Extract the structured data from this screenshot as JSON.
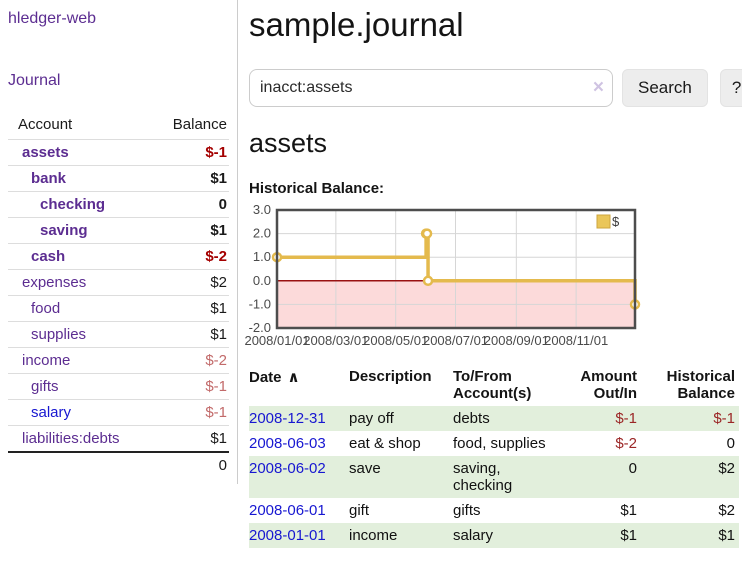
{
  "app": {
    "brand": "hledger-web"
  },
  "nav": {
    "journal": "Journal"
  },
  "sidebar": {
    "headers": {
      "account": "Account",
      "balance": "Balance"
    },
    "accounts": [
      {
        "name": "assets",
        "balance": "$-1",
        "depth": 1,
        "bold": true
      },
      {
        "name": "bank",
        "balance": "$1",
        "depth": 2,
        "bold": true
      },
      {
        "name": "checking",
        "balance": "0",
        "depth": 3,
        "bold": true
      },
      {
        "name": "saving",
        "balance": "$1",
        "depth": 3,
        "bold": true
      },
      {
        "name": "cash",
        "balance": "$-2",
        "depth": 2,
        "bold": true
      },
      {
        "name": "expenses",
        "balance": "$2",
        "depth": 1,
        "bold": false
      },
      {
        "name": "food",
        "balance": "$1",
        "depth": 2,
        "bold": false
      },
      {
        "name": "supplies",
        "balance": "$1",
        "depth": 2,
        "bold": false
      },
      {
        "name": "income",
        "balance": "$-2",
        "depth": 1,
        "bold": false
      },
      {
        "name": "gifts",
        "balance": "$-1",
        "depth": 2,
        "bold": false
      },
      {
        "name": "salary",
        "balance": "$-1",
        "depth": 2,
        "bold": false
      },
      {
        "name": "liabilities:debts",
        "balance": "$1",
        "depth": 1,
        "bold": false
      }
    ],
    "total": "0"
  },
  "main": {
    "title": "sample.journal",
    "search": {
      "value": "inacct:assets",
      "clear": "×",
      "search_button": "Search",
      "help_button": "?"
    },
    "account_heading": "assets",
    "chart_title": "Historical Balance:"
  },
  "register": {
    "headers": {
      "date": "Date",
      "sort_indicator": "∧",
      "description": "Description",
      "accounts": "To/From Account(s)",
      "amount": "Amount Out/In",
      "balance": "Historical Balance"
    },
    "rows": [
      {
        "date": "2008-12-31",
        "description": "pay off",
        "accounts": "debts",
        "amount": "$-1",
        "balance": "$-1"
      },
      {
        "date": "2008-06-03",
        "description": "eat & shop",
        "accounts": "food, supplies",
        "amount": "$-2",
        "balance": "0"
      },
      {
        "date": "2008-06-02",
        "description": "save",
        "accounts": "saving, checking",
        "amount": "0",
        "balance": "$2"
      },
      {
        "date": "2008-06-01",
        "description": "gift",
        "accounts": "gifts",
        "amount": "$1",
        "balance": "$2"
      },
      {
        "date": "2008-01-01",
        "description": "income",
        "accounts": "salary",
        "amount": "$1",
        "balance": "$1"
      }
    ]
  },
  "chart_data": {
    "type": "line",
    "step": true,
    "title": "Historical Balance:",
    "xlim": [
      "2008-01-01",
      "2008-12-31"
    ],
    "ylim": [
      -2,
      3
    ],
    "y_ticks": [
      3,
      2,
      1,
      0,
      -1,
      -2
    ],
    "x_ticks": [
      "2008/01/01",
      "2008/03/01",
      "2008/05/01",
      "2008/07/01",
      "2008/09/01",
      "2008/11/01"
    ],
    "series": [
      {
        "name": "$",
        "points": [
          [
            "2008-01-01",
            1
          ],
          [
            "2008-06-01",
            2
          ],
          [
            "2008-06-02",
            2
          ],
          [
            "2008-06-03",
            0
          ],
          [
            "2008-12-31",
            -1
          ]
        ]
      }
    ],
    "legend": {
      "label": "$",
      "position": "top-right"
    },
    "colors": {
      "line": "#e4ba4d",
      "marker_fill": "#ffffff",
      "negative_region": "#fcdada",
      "zero_line": "#991111",
      "grid": "#d6d6d6",
      "border": "#4d4d4d",
      "tick_text": "#4a4a4a",
      "legend_swatch": "#eac659",
      "legend_swatch_border": "#cda53e"
    }
  }
}
